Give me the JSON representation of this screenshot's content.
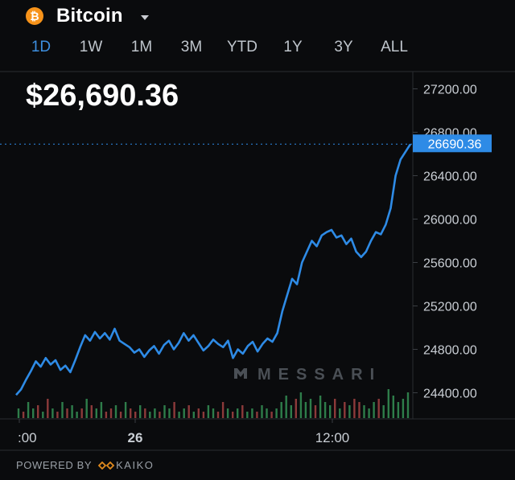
{
  "header": {
    "asset_name": "Bitcoin",
    "coin_symbol": "₿",
    "coin_color": "#f7931a"
  },
  "tabs": [
    {
      "label": "1D",
      "active": true
    },
    {
      "label": "1W",
      "active": false
    },
    {
      "label": "1M",
      "active": false
    },
    {
      "label": "3M",
      "active": false
    },
    {
      "label": "YTD",
      "active": false
    },
    {
      "label": "1Y",
      "active": false
    },
    {
      "label": "3Y",
      "active": false
    },
    {
      "label": "ALL",
      "active": false
    }
  ],
  "current_price": "$26,690.36",
  "watermark": "MESSARI",
  "footer": {
    "powered_by": "POWERED BY",
    "provider": "KAIKO"
  },
  "colors": {
    "background": "#0a0b0d",
    "line": "#2e8be6",
    "volume_up": "#2e7d4a",
    "volume_down": "#8c3a3a",
    "accent": "#3d8fe0"
  },
  "chart_data": {
    "type": "line",
    "y_ticks": [
      "24400.00",
      "24800.00",
      "25200.00",
      "25600.00",
      "26000.00",
      "26400.00",
      "26800.00",
      "27200.00"
    ],
    "ylim": [
      24300,
      27300
    ],
    "x_ticks": [
      ":00",
      "26",
      "12:00"
    ],
    "last_price_label": "26690.36",
    "last_price": 26690.36,
    "series": [
      {
        "values": [
          24380,
          24430,
          24520,
          24600,
          24690,
          24640,
          24720,
          24660,
          24700,
          24610,
          24650,
          24590,
          24700,
          24820,
          24930,
          24880,
          24960,
          24900,
          24950,
          24890,
          24990,
          24880,
          24850,
          24820,
          24770,
          24800,
          24730,
          24790,
          24830,
          24760,
          24840,
          24880,
          24800,
          24860,
          24950,
          24880,
          24930,
          24860,
          24790,
          24830,
          24890,
          24850,
          24820,
          24880,
          24720,
          24800,
          24760,
          24830,
          24870,
          24780,
          24850,
          24900,
          24870,
          24950,
          25150,
          25300,
          25450,
          25400,
          25600,
          25700,
          25800,
          25750,
          25850,
          25880,
          25900,
          25830,
          25850,
          25770,
          25820,
          25700,
          25650,
          25700,
          25800,
          25880,
          25860,
          25950,
          26100,
          26400,
          26550,
          26620,
          26690.36
        ]
      }
    ],
    "volume": [
      0.3,
      0.2,
      0.5,
      0.3,
      0.4,
      0.2,
      0.6,
      0.3,
      0.2,
      0.5,
      0.3,
      0.4,
      0.2,
      0.3,
      0.6,
      0.4,
      0.3,
      0.5,
      0.2,
      0.3,
      0.4,
      0.2,
      0.5,
      0.3,
      0.2,
      0.4,
      0.3,
      0.2,
      0.3,
      0.2,
      0.4,
      0.3,
      0.5,
      0.2,
      0.3,
      0.4,
      0.2,
      0.3,
      0.2,
      0.4,
      0.3,
      0.2,
      0.5,
      0.3,
      0.2,
      0.3,
      0.4,
      0.2,
      0.3,
      0.2,
      0.4,
      0.3,
      0.2,
      0.3,
      0.5,
      0.7,
      0.4,
      0.6,
      0.8,
      0.5,
      0.6,
      0.4,
      0.7,
      0.5,
      0.4,
      0.6,
      0.3,
      0.5,
      0.4,
      0.6,
      0.5,
      0.4,
      0.3,
      0.5,
      0.6,
      0.4,
      0.9,
      0.7,
      0.5,
      0.6,
      0.8
    ],
    "volume_up": [
      true,
      false,
      true,
      true,
      false,
      true,
      false,
      true,
      false,
      true,
      false,
      true,
      true,
      false,
      true,
      false,
      true,
      true,
      false,
      false,
      true,
      false,
      true,
      false,
      false,
      true,
      false,
      true,
      true,
      false,
      true,
      true,
      false,
      true,
      true,
      false,
      true,
      false,
      false,
      true,
      true,
      false,
      false,
      true,
      false,
      true,
      false,
      true,
      true,
      false,
      true,
      true,
      false,
      true,
      true,
      true,
      true,
      false,
      true,
      true,
      true,
      false,
      true,
      true,
      true,
      false,
      true,
      false,
      true,
      false,
      false,
      true,
      true,
      true,
      false,
      true,
      true,
      true,
      true,
      true,
      true
    ]
  }
}
